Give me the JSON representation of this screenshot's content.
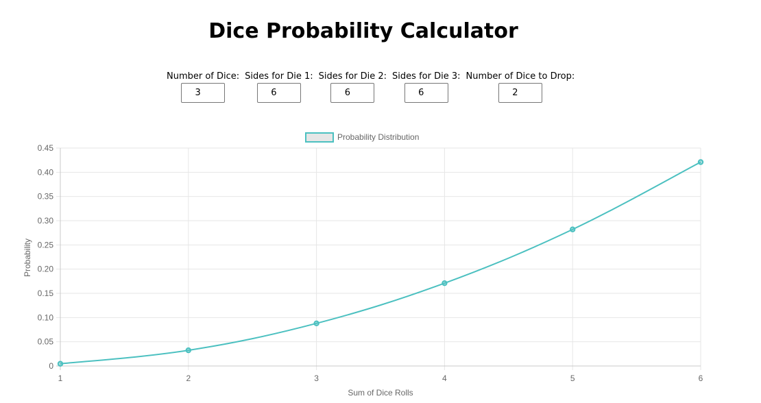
{
  "page": {
    "title": "Dice Probability Calculator"
  },
  "controls": [
    {
      "label": "Number of Dice:",
      "value": "3"
    },
    {
      "label": "Sides for Die 1:",
      "value": "6"
    },
    {
      "label": "Sides for Die 2:",
      "value": "6"
    },
    {
      "label": "Sides for Die 3:",
      "value": "6"
    },
    {
      "label": "Number of Dice to Drop:",
      "value": "2"
    }
  ],
  "chart_data": {
    "type": "line",
    "x": [
      1,
      2,
      3,
      4,
      5,
      6
    ],
    "series": [
      {
        "name": "Probability Distribution",
        "values": [
          0.0046,
          0.0324,
          0.088,
          0.171,
          0.282,
          0.421
        ],
        "color": "#4bc0c0"
      }
    ],
    "xlabel": "Sum of Dice Rolls",
    "ylabel": "Probability",
    "ylim": [
      0,
      0.45
    ],
    "yticks": [
      "0",
      "0.05",
      "0.10",
      "0.15",
      "0.20",
      "0.25",
      "0.30",
      "0.35",
      "0.40",
      "0.45"
    ],
    "xticks": [
      "1",
      "2",
      "3",
      "4",
      "5",
      "6"
    ],
    "grid": true,
    "legend": "top-center"
  }
}
